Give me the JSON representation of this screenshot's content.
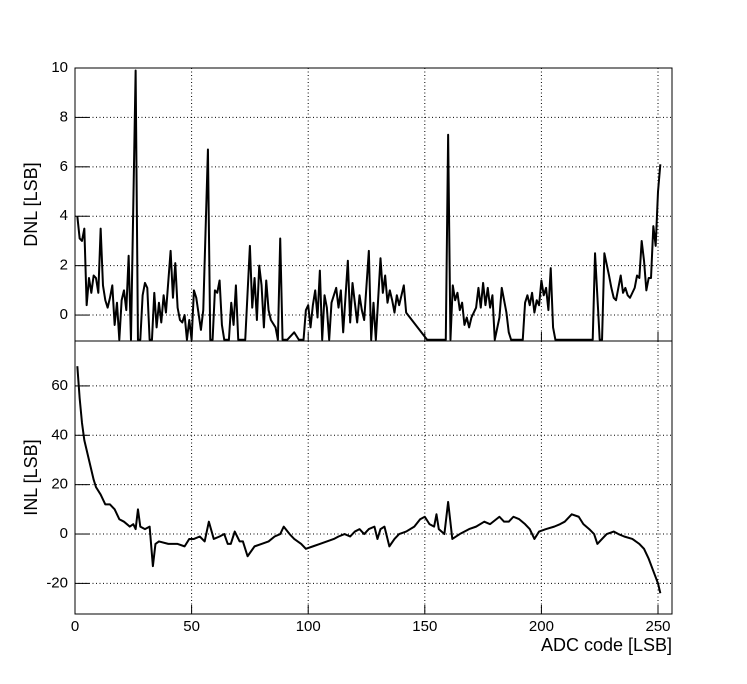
{
  "chart_data": [
    {
      "type": "line",
      "y_label": "DNL [LSB]",
      "color": "#000000",
      "grid": true,
      "xlim": [
        0,
        256
      ],
      "xticks": [
        0,
        50,
        100,
        150,
        200,
        250
      ],
      "ylim": [
        -1.05,
        10
      ],
      "yticks": [
        0,
        2,
        4,
        6,
        8,
        10
      ],
      "x": [
        1,
        2,
        3,
        4,
        5,
        6,
        7,
        8,
        9,
        10,
        11,
        12,
        13,
        14,
        15,
        16,
        17,
        18,
        19,
        20,
        21,
        22,
        23,
        24,
        26,
        27,
        28,
        29,
        30,
        31,
        32,
        33,
        34,
        35,
        36,
        37,
        38,
        39,
        41,
        42,
        43,
        44,
        45,
        46,
        47,
        48,
        49,
        50,
        51,
        52,
        54,
        55,
        57,
        58,
        59,
        60,
        61,
        62,
        63,
        64,
        66,
        67,
        68,
        69,
        70,
        73,
        75,
        76,
        77,
        78,
        79,
        80,
        81,
        82,
        83,
        84,
        86,
        87,
        88,
        89,
        91,
        92,
        94,
        96,
        98,
        99,
        100,
        101,
        102,
        103,
        104,
        105,
        106,
        107,
        108,
        109,
        110,
        112,
        113,
        114,
        115,
        117,
        118,
        119,
        120,
        121,
        122,
        123,
        124,
        126,
        127,
        128,
        129,
        131,
        132,
        133,
        134,
        135,
        136,
        137,
        138,
        139,
        141,
        142,
        151,
        159,
        160,
        161,
        162,
        163,
        164,
        165,
        166,
        167,
        168,
        169,
        170,
        171,
        172,
        173,
        174,
        175,
        176,
        177,
        178,
        179,
        180,
        182,
        183,
        184,
        185,
        186,
        187,
        192,
        193,
        194,
        195,
        196,
        197,
        198,
        199,
        200,
        201,
        202,
        203,
        204,
        205,
        206,
        222,
        223,
        225,
        226,
        227,
        229,
        230,
        231,
        232,
        234,
        235,
        236,
        237,
        238,
        240,
        241,
        242,
        243,
        244,
        245,
        246,
        247,
        248,
        249,
        250,
        251
      ],
      "values": [
        4.0,
        3.1,
        3.0,
        3.5,
        0.4,
        1.5,
        0.9,
        1.6,
        1.5,
        0.9,
        3.5,
        1.2,
        0.6,
        0.3,
        0.7,
        1.2,
        -0.4,
        0.5,
        -1,
        0.6,
        1.0,
        0.2,
        2.4,
        -1,
        9.9,
        -1,
        -1,
        0.8,
        1.3,
        1.1,
        -1,
        -1,
        0.9,
        -0.5,
        0.5,
        -0.3,
        0.8,
        0.1,
        2.6,
        0.7,
        2.1,
        0.3,
        -0.2,
        -0.3,
        0,
        -1,
        -0.2,
        -1,
        1.0,
        0.7,
        -0.6,
        0.2,
        6.7,
        -1,
        -1,
        1.0,
        0.9,
        1.4,
        -0.4,
        -1,
        -1,
        0.5,
        -0.4,
        1.2,
        -1,
        -1,
        2.8,
        0.3,
        1.5,
        -0.2,
        2.0,
        1.2,
        -0.5,
        1.4,
        0.2,
        -0.2,
        -0.5,
        -1,
        3.1,
        -1,
        -1,
        -0.9,
        -0.7,
        -1,
        -1,
        0.2,
        0.4,
        -0.5,
        0.4,
        1.0,
        -0.1,
        1.8,
        -1,
        0.8,
        0.3,
        -1,
        0.5,
        1.1,
        0.3,
        1.0,
        -0.7,
        2.2,
        -0.3,
        1.3,
        0.5,
        -0.3,
        0.8,
        0.2,
        -0.2,
        2.6,
        -1,
        0.5,
        -1,
        2.3,
        0.9,
        1.6,
        0.5,
        1.0,
        0.6,
        0.1,
        0.8,
        0.4,
        1.2,
        0.1,
        -1,
        -1,
        7.3,
        -1,
        1.2,
        0.6,
        0.9,
        0.2,
        0.5,
        -0.4,
        -0.1,
        -0.5,
        -0.1,
        0.1,
        0.3,
        1.1,
        0.3,
        1.3,
        0.4,
        1.1,
        0.3,
        0.8,
        -1,
        -0.1,
        1.1,
        0.6,
        0.1,
        -0.7,
        -1,
        -1,
        0.5,
        0.8,
        0.4,
        0.9,
        0.1,
        0.6,
        0.4,
        1.4,
        0.8,
        1.1,
        0.2,
        1.9,
        -0.5,
        -1,
        -1,
        2.5,
        -1,
        -1,
        2.5,
        1.6,
        1.1,
        0.7,
        0.6,
        1.6,
        0.9,
        1.1,
        0.8,
        0.7,
        1.1,
        1.6,
        1.5,
        3.0,
        2.2,
        1.0,
        1.5,
        1.5,
        3.6,
        2.8,
        5.0,
        6.1
      ]
    },
    {
      "type": "line",
      "y_label": "INL [LSB]",
      "x_label": "ADC code [LSB]",
      "color": "#000000",
      "grid": true,
      "xlim": [
        0,
        256
      ],
      "xticks": [
        0,
        50,
        100,
        150,
        200,
        250
      ],
      "ylim": [
        -32.4,
        78.2
      ],
      "yticks": [
        -20,
        0,
        20,
        40,
        60
      ],
      "x": [
        1,
        2,
        3,
        4,
        6,
        8,
        9,
        11,
        13,
        15,
        17,
        19,
        21,
        23.5,
        25,
        26,
        27,
        28,
        30,
        32,
        33.4,
        34.5,
        36,
        40,
        44,
        47,
        49,
        51,
        53.5,
        55.6,
        57.4,
        59.5,
        62,
        64,
        65.5,
        66.8,
        68.5,
        70.6,
        72,
        74,
        77,
        80,
        83,
        85.6,
        88,
        89.5,
        92,
        94,
        97,
        99,
        102,
        105,
        108,
        111,
        113,
        115.6,
        118,
        120,
        122,
        124,
        126,
        128.4,
        129.7,
        131,
        132.7,
        134.8,
        137,
        139,
        142,
        145.5,
        148,
        150,
        152,
        154,
        155,
        156,
        158.4,
        160,
        161.8,
        165,
        169,
        172,
        175.5,
        178,
        182,
        184,
        186,
        188,
        190.5,
        193,
        195,
        197,
        199,
        202,
        205.5,
        208,
        210,
        213,
        216,
        218,
        220.5,
        222.6,
        224,
        226,
        228,
        231,
        233,
        235.5,
        239,
        242,
        244,
        246,
        248,
        250,
        251
      ],
      "values": [
        68,
        55,
        45,
        38,
        30,
        22,
        19,
        16,
        12,
        12,
        10,
        6,
        5,
        3,
        4,
        2,
        10,
        3,
        2,
        3,
        -13,
        -4,
        -3,
        -4,
        -4,
        -5,
        -2,
        -2,
        -1,
        -3,
        5,
        -2,
        -1,
        0,
        -4,
        -4,
        1,
        -3,
        -3,
        -9,
        -5,
        -4,
        -3,
        -1,
        0,
        3,
        0,
        -2,
        -4,
        -6,
        -5,
        -4,
        -3,
        -2,
        -1,
        0,
        -1,
        1,
        2,
        0,
        2,
        3,
        -2,
        2,
        3,
        -5,
        -2,
        0,
        1,
        3,
        6,
        7,
        4,
        3,
        8,
        2,
        0,
        13,
        -2,
        0,
        2,
        3,
        5,
        4,
        7,
        5,
        5,
        7,
        6,
        4,
        2,
        -2,
        1,
        2,
        3,
        4,
        5,
        8,
        7,
        4,
        2,
        0,
        -4,
        -2,
        0,
        1,
        0,
        -1,
        -2,
        -4,
        -6,
        -10,
        -15,
        -20,
        -24
      ]
    }
  ]
}
